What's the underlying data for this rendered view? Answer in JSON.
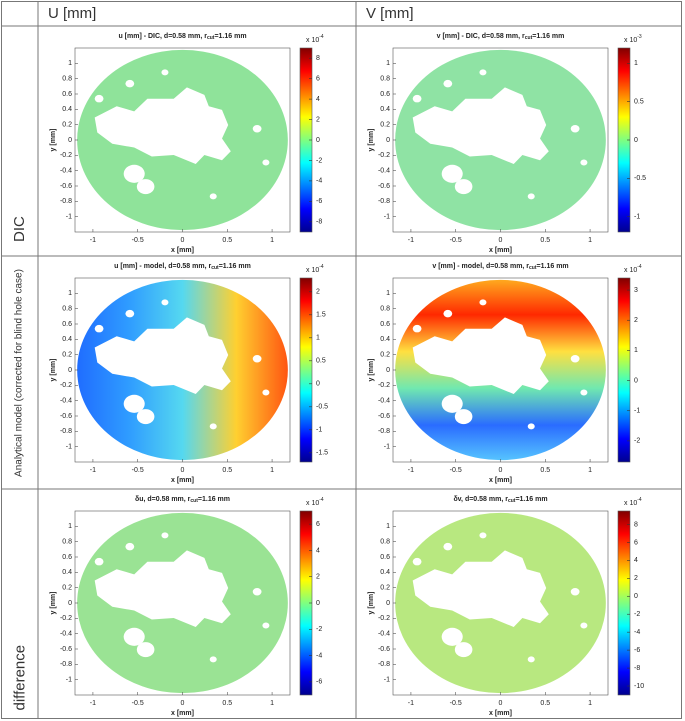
{
  "table": {
    "columns": [
      "U [mm]",
      "V [mm]"
    ],
    "rows": [
      "DIC",
      "Analytical model (corrected for blind hole case)",
      "difference"
    ]
  },
  "chart_data": [
    {
      "type": "heatmap",
      "title": "u [mm] - DIC, d=0.58 mm, r",
      "title_sub": "cut",
      "title_end": "=1.16 mm",
      "xlabel": "x [mm]",
      "ylabel": "y [mm]",
      "xlim": [
        -1.2,
        1.2
      ],
      "ylim": [
        -1.2,
        1.2
      ],
      "xticks": [
        -1,
        -0.5,
        0,
        0.5,
        1
      ],
      "yticks": [
        1,
        0.8,
        0.6,
        0.4,
        0.2,
        0,
        -0.2,
        -0.4,
        -0.6,
        -0.8,
        -1
      ],
      "clim": [
        -9,
        9
      ],
      "cticks": [
        8,
        6,
        4,
        2,
        0,
        -2,
        -4,
        -6,
        -8
      ],
      "cbar_scale": {
        "base": "x 10",
        "exp": "-4"
      },
      "field": {
        "colors": [
          "#8fe39a"
        ],
        "direction": "x"
      }
    },
    {
      "type": "heatmap",
      "title": "v [mm] - DIC, d=0.58 mm, r",
      "title_sub": "cut",
      "title_end": "=1.16 mm",
      "xlabel": "x [mm]",
      "ylabel": "y [mm]",
      "xlim": [
        -1.2,
        1.2
      ],
      "ylim": [
        -1.2,
        1.2
      ],
      "xticks": [
        -1,
        -0.5,
        0,
        0.5,
        1
      ],
      "yticks": [
        1,
        0.8,
        0.6,
        0.4,
        0.2,
        0,
        -0.2,
        -0.4,
        -0.6,
        -0.8,
        -1
      ],
      "clim": [
        -1.2,
        1.2
      ],
      "cticks": [
        1,
        0.5,
        0,
        -0.5,
        -1
      ],
      "cbar_scale": {
        "base": "x 10",
        "exp": "-3"
      },
      "field": {
        "colors": [
          "#8fe3a4"
        ],
        "direction": "x"
      }
    },
    {
      "type": "heatmap",
      "title": "u [mm] - model, d=0.58 mm, r",
      "title_sub": "cut",
      "title_end": "=1.16 mm",
      "xlabel": "x [mm]",
      "ylabel": "y [mm]",
      "xlim": [
        -1.2,
        1.2
      ],
      "ylim": [
        -1.2,
        1.2
      ],
      "xticks": [
        -1,
        -0.5,
        0,
        0.5,
        1
      ],
      "yticks": [
        1,
        0.8,
        0.6,
        0.4,
        0.2,
        0,
        -0.2,
        -0.4,
        -0.6,
        -0.8,
        -1
      ],
      "clim": [
        -1.7,
        2.3
      ],
      "cticks": [
        2,
        1.5,
        1,
        0.5,
        0,
        -0.5,
        -1,
        -1.5
      ],
      "cbar_scale": {
        "base": "x 10",
        "exp": "-4"
      },
      "field": {
        "colors": [
          "#1f6bff",
          "#2f9cff",
          "#55d8f0",
          "#ffd030",
          "#ff5010"
        ],
        "direction": "x"
      }
    },
    {
      "type": "heatmap",
      "title": "v [mm] - model, d=0.58 mm, r",
      "title_sub": "cut",
      "title_end": "=1.16 mm",
      "xlabel": "x [mm]",
      "ylabel": "y [mm]",
      "xlim": [
        -1.2,
        1.2
      ],
      "ylim": [
        -1.2,
        1.2
      ],
      "xticks": [
        -1,
        -0.5,
        0,
        0.5,
        1
      ],
      "yticks": [
        1,
        0.8,
        0.6,
        0.4,
        0.2,
        0,
        -0.2,
        -0.4,
        -0.6,
        -0.8,
        -1
      ],
      "clim": [
        -2.7,
        3.4
      ],
      "cticks": [
        3,
        2,
        1,
        0,
        -1,
        -2
      ],
      "cbar_scale": {
        "base": "x 10",
        "exp": "-4"
      },
      "field": {
        "colors": [
          "#ffb020",
          "#ff2800",
          "#ffe040",
          "#70e8b0",
          "#2a6cff",
          "#58c8ff"
        ],
        "direction": "y"
      }
    },
    {
      "type": "heatmap",
      "title": "δu, d=0.58 mm, r",
      "title_sub": "cut",
      "title_end": "=1.16 mm",
      "xlabel": "x [mm]",
      "ylabel": "y [mm]",
      "xlim": [
        -1.2,
        1.2
      ],
      "ylim": [
        -1.2,
        1.2
      ],
      "xticks": [
        -1,
        -0.5,
        0,
        0.5,
        1
      ],
      "yticks": [
        1,
        0.8,
        0.6,
        0.4,
        0.2,
        0,
        -0.2,
        -0.4,
        -0.6,
        -0.8,
        -1
      ],
      "clim": [
        -7,
        7
      ],
      "cticks": [
        6,
        4,
        2,
        0,
        -2,
        -4,
        -6
      ],
      "cbar_scale": {
        "base": "x 10",
        "exp": "-4"
      },
      "field": {
        "colors": [
          "#9ae394"
        ],
        "direction": "x"
      }
    },
    {
      "type": "heatmap",
      "title": "δv, d=0.58 mm, r",
      "title_sub": "cut",
      "title_end": "=1.16 mm",
      "xlabel": "x [mm]",
      "ylabel": "y [mm]",
      "xlim": [
        -1.2,
        1.2
      ],
      "ylim": [
        -1.2,
        1.2
      ],
      "xticks": [
        -1,
        -0.5,
        0,
        0.5,
        1
      ],
      "yticks": [
        1,
        0.8,
        0.6,
        0.4,
        0.2,
        0,
        -0.2,
        -0.4,
        -0.6,
        -0.8,
        -1
      ],
      "clim": [
        -11,
        9.5
      ],
      "cticks": [
        8,
        6,
        4,
        2,
        0,
        -2,
        -4,
        -6,
        -8,
        -10
      ],
      "cbar_scale": {
        "base": "x 10",
        "exp": "-4"
      },
      "field": {
        "colors": [
          "#b8e880"
        ],
        "direction": "x"
      }
    }
  ]
}
